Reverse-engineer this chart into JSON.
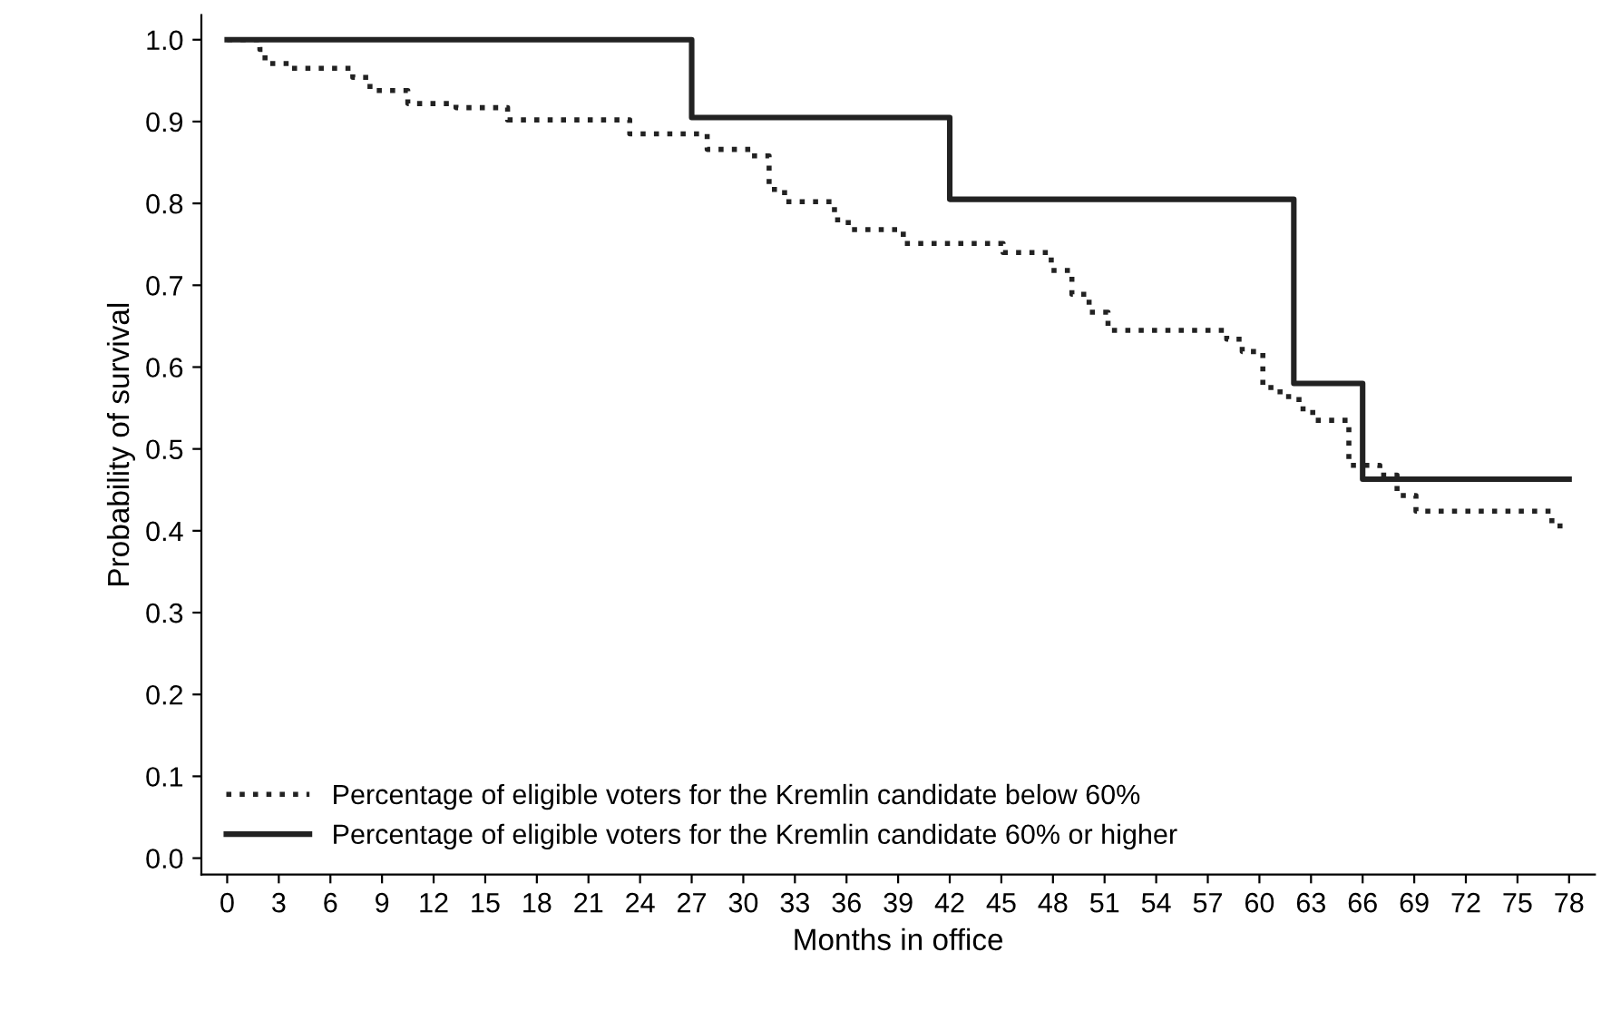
{
  "chart_data": {
    "type": "step",
    "xlabel": "Months in office",
    "ylabel": "Probability of survival",
    "xlim": [
      -1.5,
      79.5
    ],
    "xticks": [
      0,
      3,
      6,
      9,
      12,
      15,
      18,
      21,
      24,
      27,
      30,
      33,
      36,
      39,
      42,
      45,
      48,
      51,
      54,
      57,
      60,
      63,
      66,
      69,
      72,
      75,
      78
    ],
    "ylim": [
      -0.02,
      1.03
    ],
    "yticks": [
      {
        "value": 0,
        "label": "0.0"
      },
      0.1,
      0.2,
      0.3,
      0.4,
      0.5,
      0.6,
      0.7,
      0.8,
      0.9,
      {
        "value": 1,
        "label": "1.0"
      }
    ],
    "grid": false,
    "legend": "bottom left",
    "series": [
      {
        "name": "Percentage of eligible voters for the Kremlin candidate below 60%",
        "color": "#222222",
        "line_style": "dotted",
        "x": [
          0,
          1.9,
          2.2,
          3.6,
          7.3,
          8.3,
          10.5,
          13.3,
          16.3,
          23.4,
          27.9,
          30.5,
          31.5,
          32.4,
          35.3,
          36.1,
          39.3,
          45.1,
          47.9,
          49.1,
          50.1,
          51.2,
          58.1,
          59.0,
          60.2,
          61.2,
          62.3,
          63.1,
          65.2,
          67.0,
          68.0,
          69.1,
          77.0,
          78
        ],
        "values": [
          1.0,
          0.988,
          0.971,
          0.965,
          0.954,
          0.938,
          0.922,
          0.917,
          0.902,
          0.885,
          0.866,
          0.858,
          0.817,
          0.802,
          0.78,
          0.768,
          0.751,
          0.74,
          0.718,
          0.689,
          0.667,
          0.645,
          0.634,
          0.619,
          0.575,
          0.564,
          0.549,
          0.535,
          0.48,
          0.468,
          0.443,
          0.424,
          0.406,
          0.406
        ]
      },
      {
        "name": "Percentage of eligible voters for the Kremlin candidate 60% or higher",
        "color": "#222222",
        "line_style": "solid",
        "x": [
          0,
          27,
          42,
          62,
          66,
          78
        ],
        "values": [
          1.0,
          0.905,
          0.805,
          0.58,
          0.463,
          0.463
        ]
      }
    ]
  }
}
